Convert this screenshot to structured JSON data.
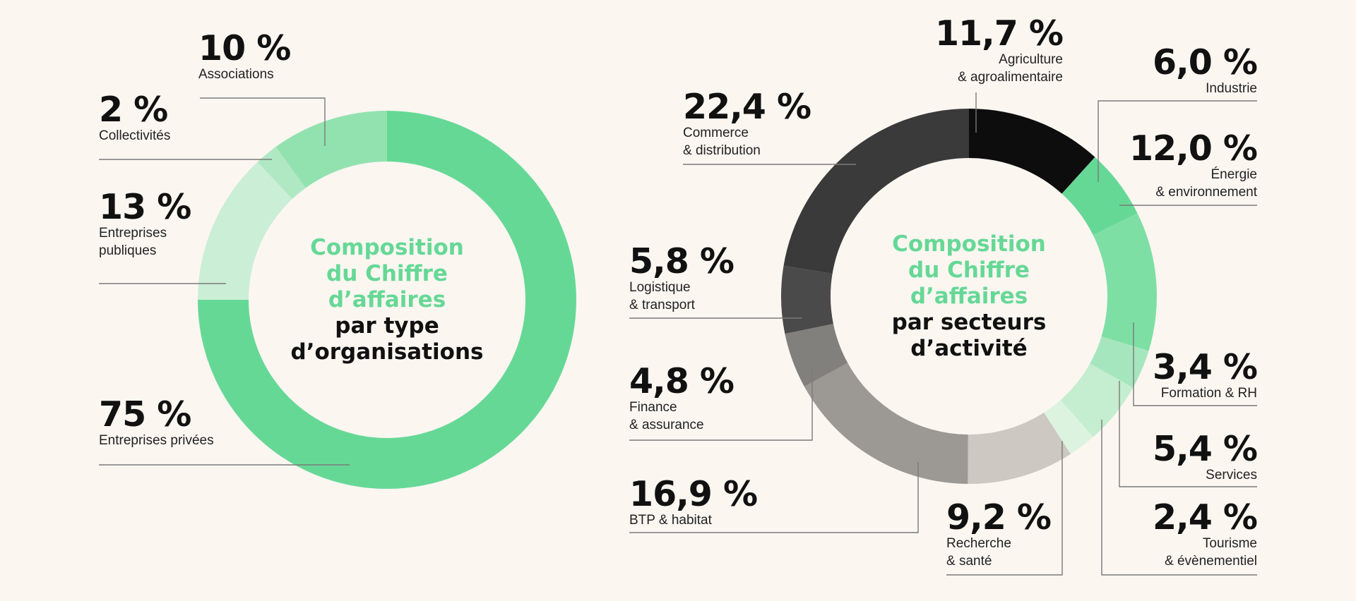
{
  "colors": {
    "background": "#fcf6f1",
    "accent_green": "#66d896",
    "dark_text": "#111111"
  },
  "chart_data": [
    {
      "type": "pie",
      "title_lines": [
        "Composition",
        "du Chiffre",
        "d’affaires",
        "par type",
        "d’organisations"
      ],
      "slices": [
        {
          "pct_label": "75 %",
          "value": 75,
          "labels": [
            "Entreprises privées"
          ],
          "color": "#66d896"
        },
        {
          "pct_label": "13 %",
          "value": 13,
          "labels": [
            "Entreprises",
            "publiques"
          ],
          "color": "#cbeed6"
        },
        {
          "pct_label": "2 %",
          "value": 2,
          "labels": [
            "Collectivités"
          ],
          "color": "#b0e8c4"
        },
        {
          "pct_label": "10 %",
          "value": 10,
          "labels": [
            "Associations"
          ],
          "color": "#92e2b0"
        }
      ]
    },
    {
      "type": "pie",
      "title_lines": [
        "Composition",
        "du Chiffre",
        "d’affaires",
        "par secteurs",
        "d’activité"
      ],
      "slices": [
        {
          "pct_label": "11,7 %",
          "value": 11.7,
          "labels": [
            "Agriculture",
            "& agroalimentaire"
          ],
          "color": "#0d0d0d"
        },
        {
          "pct_label": "6,0 %",
          "value": 6.0,
          "labels": [
            "Industrie"
          ],
          "color": "#66d896"
        },
        {
          "pct_label": "12,0 %",
          "value": 12.0,
          "labels": [
            "Énergie",
            "& environnement"
          ],
          "color": "#7edfa4"
        },
        {
          "pct_label": "3,4 %",
          "value": 3.4,
          "labels": [
            "Formation & RH"
          ],
          "color": "#a6e6be"
        },
        {
          "pct_label": "5,4 %",
          "value": 5.4,
          "labels": [
            "Services"
          ],
          "color": "#c4eecf"
        },
        {
          "pct_label": "2,4 %",
          "value": 2.4,
          "labels": [
            "Tourisme",
            "& évènementiel"
          ],
          "color": "#dcf3e0"
        },
        {
          "pct_label": "9,2 %",
          "value": 9.2,
          "labels": [
            "Recherche",
            "& santé"
          ],
          "color": "#cdc8c1"
        },
        {
          "pct_label": "16,9 %",
          "value": 16.9,
          "labels": [
            "BTP & habitat"
          ],
          "color": "#9c9994"
        },
        {
          "pct_label": "4,8 %",
          "value": 4.8,
          "labels": [
            "Finance",
            "& assurance"
          ],
          "color": "#82807c"
        },
        {
          "pct_label": "5,8 %",
          "value": 5.8,
          "labels": [
            "Logistique",
            "& transport"
          ],
          "color": "#4a4a4a"
        },
        {
          "pct_label": "22,4 %",
          "value": 22.4,
          "labels": [
            "Commerce",
            "& distribution"
          ],
          "color": "#3a3a3a"
        }
      ]
    }
  ]
}
